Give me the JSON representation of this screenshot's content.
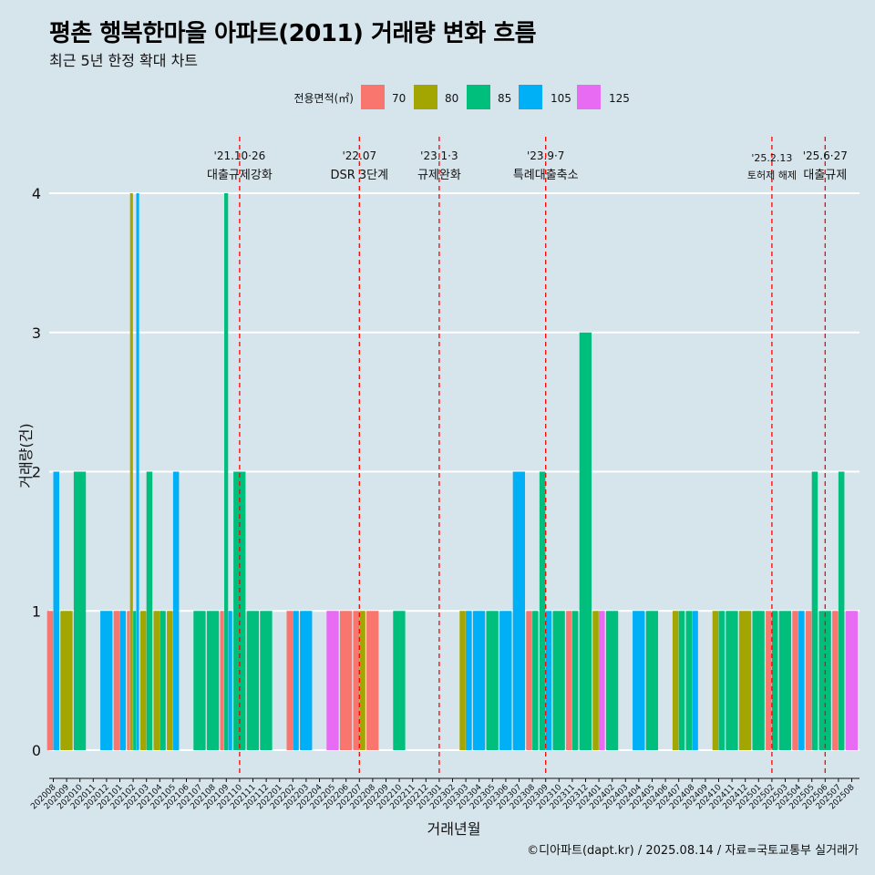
{
  "header": {
    "title": "평촌 행복한마을 아파트(2011) 거래량 변화 흐름",
    "subtitle": "최근 5년 한정 확대 차트"
  },
  "footer": {
    "caption": "©디아파트(dapt.kr) / 2025.08.14 / 자료=국토교통부 실거래가"
  },
  "chart_data": {
    "type": "bar",
    "xlabel": "거래년월",
    "ylabel": "거래량(건)",
    "ylim": [
      0,
      4
    ],
    "yticks": [
      0,
      1,
      2,
      3,
      4
    ],
    "legend": {
      "title": "전용면적(㎡)",
      "placement": "top",
      "entries": [
        {
          "name": "70",
          "color": "#F8766D"
        },
        {
          "name": "80",
          "color": "#A3A500"
        },
        {
          "name": "85",
          "color": "#00BF7D"
        },
        {
          "name": "105",
          "color": "#00B0F6"
        },
        {
          "name": "125",
          "color": "#E76BF3"
        }
      ]
    },
    "categories": [
      "202008",
      "202009",
      "202010",
      "202011",
      "202012",
      "202101",
      "202102",
      "202103",
      "202104",
      "202105",
      "202106",
      "202107",
      "202108",
      "202109",
      "202110",
      "202111",
      "202112",
      "202201",
      "202202",
      "202203",
      "202204",
      "202205",
      "202206",
      "202207",
      "202208",
      "202209",
      "202210",
      "202211",
      "202212",
      "202301",
      "202302",
      "202303",
      "202304",
      "202305",
      "202306",
      "202307",
      "202308",
      "202309",
      "202310",
      "202311",
      "202312",
      "202401",
      "202402",
      "202403",
      "202404",
      "202405",
      "202406",
      "202407",
      "202408",
      "202409",
      "202410",
      "202411",
      "202412",
      "202501",
      "202502",
      "202503",
      "202504",
      "202505",
      "202506",
      "202507",
      "202508"
    ],
    "bars": [
      {
        "month": "202008",
        "area": "70",
        "value": 1
      },
      {
        "month": "202008",
        "area": "105",
        "value": 2
      },
      {
        "month": "202009",
        "area": "80",
        "value": 1
      },
      {
        "month": "202010",
        "area": "85",
        "value": 2
      },
      {
        "month": "202012",
        "area": "105",
        "value": 1
      },
      {
        "month": "202101",
        "area": "105",
        "value": 1
      },
      {
        "month": "202101",
        "area": "70",
        "value": 1
      },
      {
        "month": "202102",
        "area": "70",
        "value": 1
      },
      {
        "month": "202102",
        "area": "80",
        "value": 4
      },
      {
        "month": "202102",
        "area": "85",
        "value": 1
      },
      {
        "month": "202102",
        "area": "105",
        "value": 4
      },
      {
        "month": "202103",
        "area": "80",
        "value": 1
      },
      {
        "month": "202103",
        "area": "85",
        "value": 2
      },
      {
        "month": "202104",
        "area": "80",
        "value": 1
      },
      {
        "month": "202104",
        "area": "85",
        "value": 1
      },
      {
        "month": "202105",
        "area": "80",
        "value": 1
      },
      {
        "month": "202105",
        "area": "105",
        "value": 2
      },
      {
        "month": "202107",
        "area": "85",
        "value": 1
      },
      {
        "month": "202108",
        "area": "85",
        "value": 1
      },
      {
        "month": "202109",
        "area": "70",
        "value": 1
      },
      {
        "month": "202109",
        "area": "85",
        "value": 4
      },
      {
        "month": "202109",
        "area": "105",
        "value": 1
      },
      {
        "month": "202110",
        "area": "85",
        "value": 2
      },
      {
        "month": "202111",
        "area": "85",
        "value": 1
      },
      {
        "month": "202112",
        "area": "85",
        "value": 1
      },
      {
        "month": "202202",
        "area": "70",
        "value": 1
      },
      {
        "month": "202202",
        "area": "105",
        "value": 1
      },
      {
        "month": "202203",
        "area": "105",
        "value": 1
      },
      {
        "month": "202205",
        "area": "125",
        "value": 1
      },
      {
        "month": "202206",
        "area": "70",
        "value": 1
      },
      {
        "month": "202207",
        "area": "80",
        "value": 1
      },
      {
        "month": "202207",
        "area": "70",
        "value": 1
      },
      {
        "month": "202208",
        "area": "70",
        "value": 1
      },
      {
        "month": "202210",
        "area": "85",
        "value": 1
      },
      {
        "month": "202303",
        "area": "80",
        "value": 1
      },
      {
        "month": "202303",
        "area": "105",
        "value": 1
      },
      {
        "month": "202304",
        "area": "105",
        "value": 1
      },
      {
        "month": "202305",
        "area": "85",
        "value": 1
      },
      {
        "month": "202306",
        "area": "105",
        "value": 1
      },
      {
        "month": "202307",
        "area": "105",
        "value": 2
      },
      {
        "month": "202308",
        "area": "70",
        "value": 1
      },
      {
        "month": "202308",
        "area": "85",
        "value": 1
      },
      {
        "month": "202309",
        "area": "105",
        "value": 1
      },
      {
        "month": "202309",
        "area": "85",
        "value": 2
      },
      {
        "month": "202310",
        "area": "85",
        "value": 1
      },
      {
        "month": "202311",
        "area": "70",
        "value": 1
      },
      {
        "month": "202311",
        "area": "85",
        "value": 1
      },
      {
        "month": "202312",
        "area": "85",
        "value": 3
      },
      {
        "month": "202401",
        "area": "80",
        "value": 1
      },
      {
        "month": "202401",
        "area": "125",
        "value": 1
      },
      {
        "month": "202402",
        "area": "85",
        "value": 1
      },
      {
        "month": "202404",
        "area": "105",
        "value": 1
      },
      {
        "month": "202405",
        "area": "85",
        "value": 1
      },
      {
        "month": "202407",
        "area": "80",
        "value": 1
      },
      {
        "month": "202407",
        "area": "85",
        "value": 1
      },
      {
        "month": "202408",
        "area": "105",
        "value": 1
      },
      {
        "month": "202408",
        "area": "85",
        "value": 1
      },
      {
        "month": "202410",
        "area": "80",
        "value": 1
      },
      {
        "month": "202410",
        "area": "85",
        "value": 1
      },
      {
        "month": "202411",
        "area": "85",
        "value": 1
      },
      {
        "month": "202412",
        "area": "80",
        "value": 1
      },
      {
        "month": "202501",
        "area": "85",
        "value": 1
      },
      {
        "month": "202502",
        "area": "70",
        "value": 1
      },
      {
        "month": "202502",
        "area": "85",
        "value": 1
      },
      {
        "month": "202503",
        "area": "85",
        "value": 1
      },
      {
        "month": "202504",
        "area": "70",
        "value": 1
      },
      {
        "month": "202504",
        "area": "105",
        "value": 1
      },
      {
        "month": "202505",
        "area": "70",
        "value": 1
      },
      {
        "month": "202505",
        "area": "85",
        "value": 2
      },
      {
        "month": "202506",
        "area": "85",
        "value": 1
      },
      {
        "month": "202507",
        "area": "70",
        "value": 1
      },
      {
        "month": "202507",
        "area": "85",
        "value": 2
      },
      {
        "month": "202508",
        "area": "125",
        "value": 1
      }
    ],
    "events": [
      {
        "x": "202110",
        "date": "'21.10·26",
        "label": "대출규제강화"
      },
      {
        "x": "202207",
        "date": "'22.07",
        "label": "DSR 3단계"
      },
      {
        "x": "202301",
        "date": "'23.1·3",
        "label": "규제완화"
      },
      {
        "x": "202309",
        "date": "'23.9·7",
        "label": "특례대출축소"
      },
      {
        "x": "202502",
        "date": "'25.2.13",
        "label": "토허제 해제"
      },
      {
        "x": "202506",
        "date": "'25.6·27",
        "label": "대출규제"
      }
    ],
    "grid": true,
    "colors": {
      "event_line": "#ff0000",
      "background": "#d6e4ec",
      "grid": "#ffffff"
    }
  }
}
